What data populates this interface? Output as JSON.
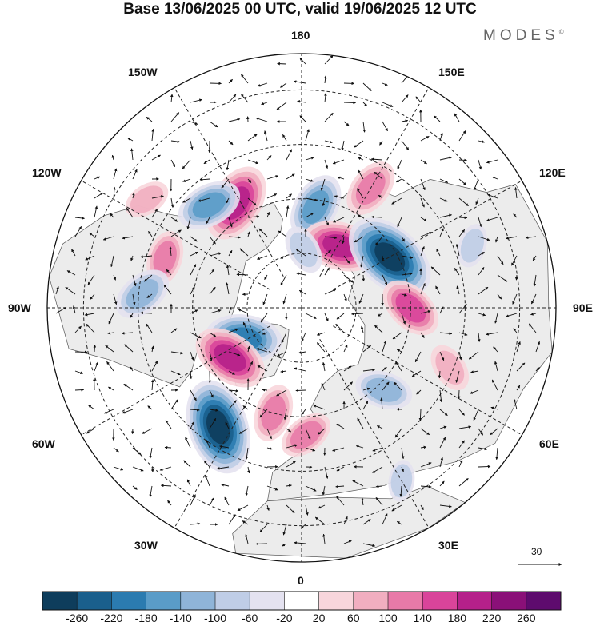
{
  "title": "Base 13/06/2025 00 UTC, valid 19/06/2025 12 UTC",
  "brand": "MODES",
  "brand_mark": "©",
  "longitude_labels": {
    "north": "180",
    "south": "0",
    "west": "90W",
    "east": "90E",
    "nw1": "150W",
    "nw2": "120W",
    "ne1": "150E",
    "ne2": "120E",
    "sw1": "60W",
    "sw2": "30W",
    "se1": "60E",
    "se2": "30E"
  },
  "reference_vector_label": "30",
  "colors": {
    "ocean_land_bg": "#f0f0f0",
    "neutral": "#ffffff"
  },
  "colorbar": {
    "ticks": [
      "-260",
      "-220",
      "-180",
      "-140",
      "-100",
      "-60",
      "-20",
      "20",
      "60",
      "100",
      "140",
      "180",
      "220",
      "260"
    ],
    "colors": [
      "#0e3d5c",
      "#1a5f8c",
      "#2b7bb0",
      "#5a9cc8",
      "#8fb4d8",
      "#bfcde6",
      "#e4e2f0",
      "#ffffff",
      "#f8d6dc",
      "#f1aec0",
      "#e87aa8",
      "#d9449a",
      "#b5208a",
      "#8a1078",
      "#5e0b6e"
    ]
  },
  "anomaly_blobs": [
    {
      "lon": 172,
      "lat": 62,
      "value": -160
    },
    {
      "lon": 150,
      "lat": 52,
      "value": 130
    },
    {
      "lon": -148,
      "lat": 56,
      "value": 200
    },
    {
      "lon": -138,
      "lat": 52,
      "value": -150
    },
    {
      "lon": 148,
      "lat": 70,
      "value": 190
    },
    {
      "lon": 178,
      "lat": 74,
      "value": -90
    },
    {
      "lon": 120,
      "lat": 62,
      "value": -270
    },
    {
      "lon": 90,
      "lat": 60,
      "value": 150
    },
    {
      "lon": -110,
      "lat": 50,
      "value": 110
    },
    {
      "lon": -95,
      "lat": 46,
      "value": -130
    },
    {
      "lon": -62,
      "lat": 72,
      "value": -190
    },
    {
      "lon": -55,
      "lat": 66,
      "value": 190
    },
    {
      "lon": -35,
      "lat": 50,
      "value": -260
    },
    {
      "lon": -15,
      "lat": 60,
      "value": 120
    },
    {
      "lon": 2,
      "lat": 55,
      "value": 110
    },
    {
      "lon": 45,
      "lat": 58,
      "value": -120
    },
    {
      "lon": 68,
      "lat": 46,
      "value": 90
    },
    {
      "lon": 110,
      "lat": 40,
      "value": -70
    },
    {
      "lon": -125,
      "lat": 38,
      "value": 80
    },
    {
      "lon": 30,
      "lat": 35,
      "value": -60
    }
  ]
}
